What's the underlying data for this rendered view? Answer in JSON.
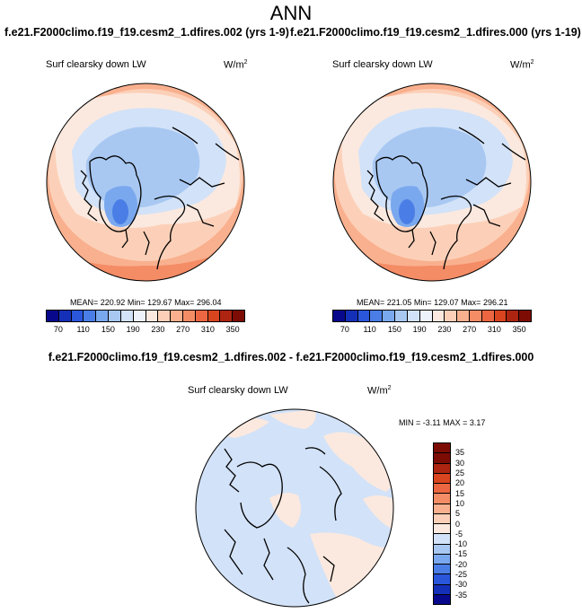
{
  "title": "ANN",
  "case_titles": {
    "left": "f.e21.F2000climo.f19_f19.cesm2_1.dfires.002 (yrs 1-9)",
    "right": "f.e21.F2000climo.f19_f19.cesm2_1.dfires.000 (yrs 1-19)"
  },
  "diff_title": "f.e21.F2000climo.f19_f19.cesm2_1.dfires.002 - f.e21.F2000climo.f19_f19.cesm2_1.dfires.000",
  "panels": {
    "left": {
      "variable": "Surf clearsky down LW",
      "units": "W/m",
      "units_exp": "2",
      "mean_label": "MEAN=",
      "mean": "220.92",
      "min_label": "Min=",
      "min": "129.67",
      "max_label": "Max=",
      "max": "296.04"
    },
    "right": {
      "variable": "Surf clearsky down LW",
      "units": "W/m",
      "units_exp": "2",
      "mean_label": "MEAN=",
      "mean": "221.05",
      "min_label": "Min=",
      "min": "129.07",
      "max_label": "Max=",
      "max": "296.21"
    },
    "diff": {
      "variable": "Surf clearsky down LW",
      "units": "W/m",
      "units_exp": "2",
      "stats": "MIN = -3.11 MAX =  3.17"
    }
  },
  "colorbar_abs": {
    "ticks": [
      "70",
      "110",
      "150",
      "190",
      "230",
      "270",
      "310",
      "350"
    ],
    "colors": [
      "#08088c",
      "#1530b8",
      "#2a56dc",
      "#4a7ee6",
      "#7aa8ee",
      "#a8c8f2",
      "#d2e2f8",
      "#eef2fb",
      "#fbe9df",
      "#fcd0b8",
      "#f9b08e",
      "#f48c66",
      "#ec6741",
      "#d9451e",
      "#ad2510",
      "#7d0c05"
    ]
  },
  "colorbar_diff": {
    "ticks": [
      "35",
      "30",
      "25",
      "20",
      "15",
      "10",
      "5",
      "0",
      "-5",
      "-10",
      "-15",
      "-20",
      "-25",
      "-30",
      "-35"
    ],
    "colors": [
      "#7d0c05",
      "#ad2510",
      "#d9451e",
      "#ec6741",
      "#f48c66",
      "#f9b08e",
      "#fcd0b8",
      "#fbe9df",
      "#d2e2f8",
      "#a8c8f2",
      "#7aa8ee",
      "#4a7ee6",
      "#2a56dc",
      "#1530b8",
      "#08088c"
    ]
  },
  "map_colors": {
    "light_blue": "#d2e2f8",
    "mid_blue": "#a8c8f2",
    "blue": "#7aa8ee",
    "deep_blue": "#4a7ee6",
    "peach": "#fbe9df",
    "light_orange": "#fcd0b8",
    "orange": "#f9b08e",
    "red_orange": "#f48c66"
  }
}
